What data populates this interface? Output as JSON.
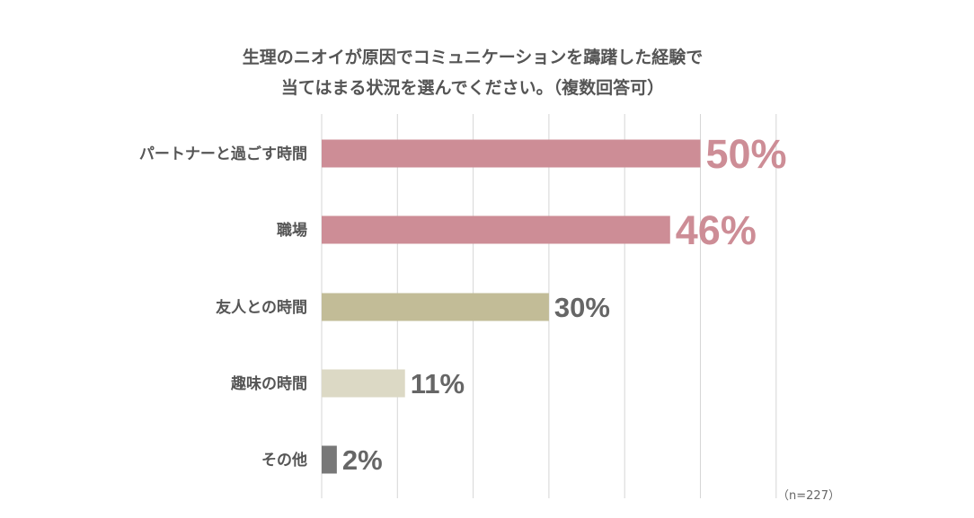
{
  "chart_data": {
    "type": "bar",
    "orientation": "horizontal",
    "title": [
      "生理のニオイが原因でコミュニケーションを躊躇した経験で",
      "当てはまる状況を選んでください。（複数回答可）"
    ],
    "categories": [
      "パートナーと過ごす時間",
      "職場",
      "友人との時間",
      "趣味の時間",
      "その他"
    ],
    "values": [
      50,
      46,
      30,
      11,
      2
    ],
    "value_labels": [
      "50%",
      "46%",
      "30%",
      "11%",
      "2%"
    ],
    "bar_colors": [
      "#cd8d96",
      "#cd8d96",
      "#c2bc97",
      "#dcd9c5",
      "#787878"
    ],
    "value_label_colors": [
      "#cd8d96",
      "#cd8d96",
      "#666666",
      "#666666",
      "#666666"
    ],
    "xlim": [
      0,
      60
    ],
    "grid": true,
    "note": "（n=227）"
  }
}
